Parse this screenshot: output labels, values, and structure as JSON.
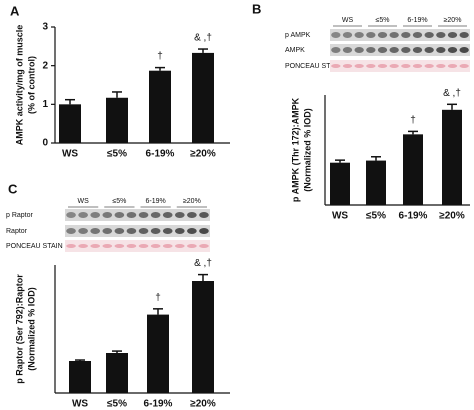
{
  "chart_data": [
    {
      "type": "bar",
      "panel": "A",
      "ylabel": [
        "AMPK activity/mg of muscle",
        "(% of control)"
      ],
      "categories": [
        "WS",
        "≤5%",
        "6-19%",
        "≥20%"
      ],
      "values": [
        1.0,
        1.17,
        1.87,
        2.33
      ],
      "errors": [
        0.12,
        0.15,
        0.08,
        0.1
      ],
      "bar_annotations": [
        null,
        null,
        "†",
        "& ,†"
      ],
      "color": "#111111",
      "ylim": [
        0,
        3
      ],
      "yticks": [
        0,
        1,
        2,
        3
      ]
    },
    {
      "type": "bar",
      "panel": "B",
      "ylabel": [
        "p AMPK (Thr 172):AMPK",
        "(Normalized % IOD)"
      ],
      "blot": {
        "lanes": [
          "WS",
          "≤5%",
          "6-19%",
          "≥20%"
        ],
        "rows": [
          "p AMPK",
          "AMPK",
          "PONCEAU STAIN"
        ]
      },
      "categories": [
        "WS",
        "≤5%",
        "6-19%",
        "≥20%"
      ],
      "values": [
        1.0,
        1.05,
        1.67,
        2.25
      ],
      "errors": [
        0.06,
        0.09,
        0.07,
        0.13
      ],
      "bar_annotations": [
        null,
        null,
        "†",
        "& ,†"
      ],
      "color": "#111111",
      "ylim": [
        0,
        2.6
      ]
    },
    {
      "type": "bar",
      "panel": "C",
      "ylabel": [
        "p Raptor (Ser 792):Raptor",
        "(Normalized % IOD)"
      ],
      "blot": {
        "lanes": [
          "WS",
          "≤5%",
          "6-19%",
          "≥20%"
        ],
        "rows": [
          "p Raptor",
          "Raptor",
          "PONCEAU STAIN"
        ]
      },
      "categories": [
        "WS",
        "≤5%",
        "6-19%",
        "≥20%"
      ],
      "values": [
        1.0,
        1.25,
        2.45,
        3.5
      ],
      "errors": [
        0.03,
        0.06,
        0.18,
        0.2
      ],
      "bar_annotations": [
        null,
        null,
        "†",
        "& ,†"
      ],
      "color": "#111111",
      "ylim": [
        0,
        4
      ]
    }
  ]
}
